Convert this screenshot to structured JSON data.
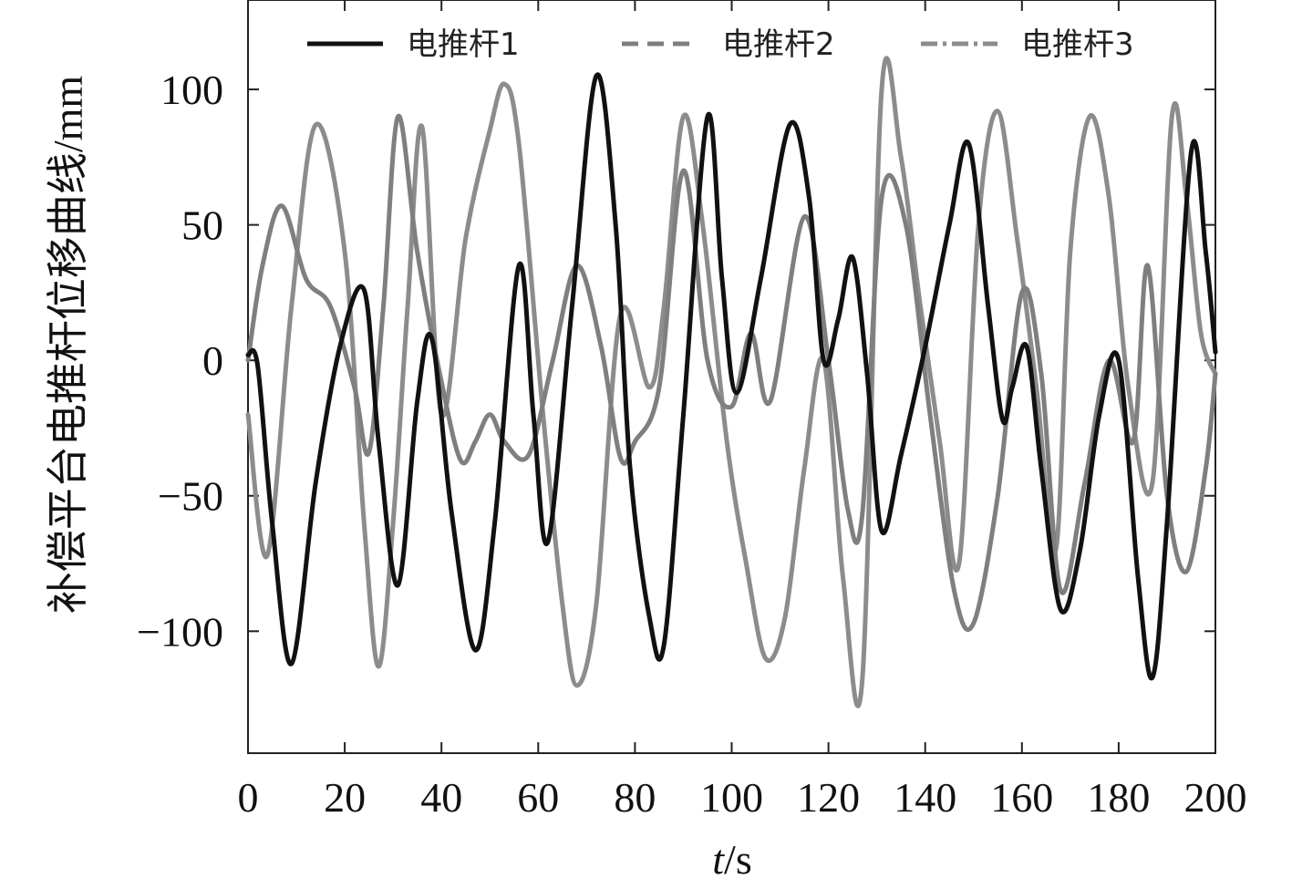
{
  "chart_data": {
    "type": "line",
    "title": "",
    "xlabel_italic": "t",
    "xlabel_unit": "/s",
    "ylabel": "补偿平台电推杆位移曲线/mm",
    "xlim": [
      0,
      200
    ],
    "ylim": [
      -145,
      133
    ],
    "xticks": [
      0,
      20,
      40,
      60,
      80,
      100,
      120,
      140,
      160,
      180,
      200
    ],
    "yticks": [
      -100,
      -50,
      0,
      50,
      100
    ],
    "ytick_labels": [
      "−100",
      "−50",
      "0",
      "50",
      "100"
    ],
    "grid": false,
    "legend_position": "top",
    "series": [
      {
        "name": "电推杆1",
        "color": "#111111",
        "style": "solid",
        "x": [
          0,
          2,
          5,
          9,
          14,
          19,
          24,
          27,
          31,
          35,
          38,
          42,
          47,
          51,
          56,
          59,
          62,
          67,
          72,
          76,
          79,
          83,
          86,
          90,
          95,
          98,
          101,
          106,
          112,
          116,
          119,
          122,
          125,
          128,
          131,
          135,
          140,
          145,
          149,
          153,
          156,
          158,
          161,
          164,
          168,
          172,
          176,
          180,
          184,
          187,
          190,
          195,
          198,
          200
        ],
        "y": [
          2,
          -2,
          -60,
          -112,
          -45,
          5,
          26,
          -30,
          -83,
          -15,
          8,
          -55,
          -107,
          -60,
          35,
          -20,
          -67,
          20,
          105,
          50,
          -40,
          -95,
          -105,
          -20,
          90,
          30,
          -12,
          30,
          87,
          60,
          0,
          15,
          38,
          -5,
          -63,
          -35,
          5,
          50,
          80,
          20,
          -22,
          -10,
          5,
          -40,
          -92,
          -70,
          -20,
          0,
          -80,
          -117,
          -60,
          77,
          40,
          3
        ]
      },
      {
        "name": "电推杆2",
        "color": "#7f7f7f",
        "style": "dashed",
        "x": [
          0,
          3,
          7,
          12,
          17,
          22,
          25,
          28,
          31,
          35,
          40,
          44,
          47,
          50,
          53,
          58,
          63,
          68,
          73,
          77,
          80,
          85,
          90,
          95,
          100,
          104,
          108,
          115,
          120,
          124,
          127,
          131,
          136,
          141,
          146,
          150,
          155,
          160,
          164,
          168,
          173,
          178,
          183,
          186,
          190,
          194,
          198,
          200
        ],
        "y": [
          0,
          35,
          57,
          30,
          20,
          -10,
          -34,
          20,
          90,
          40,
          -8,
          -37,
          -30,
          -20,
          -30,
          -35,
          0,
          35,
          5,
          -36,
          -30,
          -10,
          70,
          0,
          -17,
          10,
          -15,
          53,
          0,
          -55,
          -57,
          60,
          50,
          -20,
          -85,
          -97,
          -50,
          25,
          -5,
          -85,
          -45,
          0,
          -30,
          35,
          -50,
          -78,
          -40,
          -5
        ]
      },
      {
        "name": "电推杆3",
        "color": "#8c8c8c",
        "style": "dashdot",
        "x": [
          0,
          4,
          9,
          14,
          20,
          24,
          27,
          30,
          33,
          36,
          40,
          45,
          50,
          53,
          56,
          61,
          65,
          68,
          72,
          77,
          83,
          86,
          90,
          94,
          99,
          103,
          107,
          111,
          115,
          119,
          123,
          127,
          131,
          135,
          139,
          143,
          147,
          151,
          155,
          159,
          163,
          167,
          170,
          174,
          178,
          182,
          187,
          191,
          194,
          197,
          200
        ],
        "y": [
          -20,
          -72,
          20,
          87,
          40,
          -60,
          -113,
          -60,
          20,
          86,
          -20,
          45,
          85,
          102,
          80,
          -20,
          -90,
          -120,
          -90,
          17,
          -10,
          20,
          90,
          50,
          -30,
          -75,
          -110,
          -95,
          -40,
          0,
          -80,
          -118,
          100,
          75,
          20,
          -30,
          -75,
          50,
          92,
          45,
          -10,
          -70,
          40,
          90,
          60,
          -10,
          -45,
          90,
          60,
          10,
          -5
        ]
      }
    ]
  }
}
